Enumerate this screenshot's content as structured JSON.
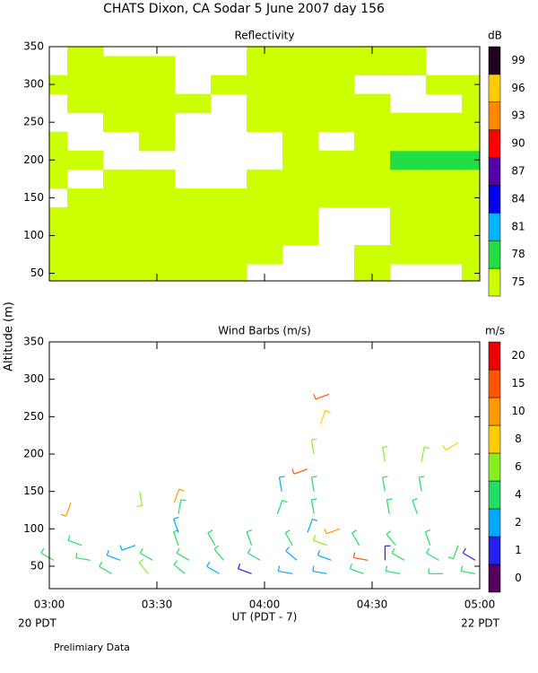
{
  "title": "CHATS Dixon, CA  Sodar    5 June 2007   day 156",
  "y_label": "Altitude (m)",
  "x_label": "UT  (PDT - 7)",
  "x_start_label": "20 PDT",
  "x_end_label": "22 PDT",
  "footnote": "Prelimiary Data",
  "chart_data": [
    {
      "type": "contour",
      "title": "Reflectivity",
      "colorbar_label": "dB",
      "xlim": [
        3,
        5
      ],
      "xticks": [
        3,
        3.5,
        4,
        4.5,
        5
      ],
      "ylim": [
        40,
        350
      ],
      "yticks": [
        50,
        100,
        150,
        200,
        250,
        300,
        350
      ],
      "x": [
        3.0,
        3.1667,
        3.3333,
        3.5,
        3.6667,
        3.8333,
        4.0,
        4.1667,
        4.3333,
        4.5,
        4.6667,
        4.8333,
        5.0
      ],
      "y": [
        50,
        75,
        100,
        125,
        150,
        175,
        200,
        225,
        250,
        275,
        300,
        325,
        350
      ],
      "z": [
        [
          76,
          75,
          75,
          75,
          75,
          75,
          null,
          null,
          null,
          75,
          null,
          null,
          75
        ],
        [
          75,
          75,
          75,
          75,
          75,
          75,
          75,
          null,
          null,
          75,
          75,
          75,
          75
        ],
        [
          75,
          75,
          75,
          75,
          76,
          76,
          75,
          75,
          null,
          null,
          75,
          75,
          75
        ],
        [
          75,
          75,
          76,
          77,
          75,
          75,
          75,
          75,
          null,
          null,
          75,
          75,
          75
        ],
        [
          null,
          75,
          77,
          76,
          75,
          75,
          76,
          75,
          75,
          75,
          77,
          75,
          75
        ],
        [
          75,
          null,
          75,
          75,
          null,
          null,
          75,
          75,
          75,
          75,
          76,
          76,
          75
        ],
        [
          75,
          75,
          null,
          null,
          null,
          null,
          null,
          75,
          76,
          77,
          80,
          80,
          80
        ],
        [
          75,
          null,
          null,
          75,
          null,
          null,
          null,
          75,
          null,
          76,
          76,
          77,
          77
        ],
        [
          null,
          null,
          75,
          76,
          null,
          null,
          75,
          77,
          75,
          75,
          75,
          75,
          75
        ],
        [
          null,
          75,
          75,
          75,
          75,
          null,
          75,
          75,
          75,
          75,
          null,
          null,
          75
        ],
        [
          75,
          77,
          77,
          76,
          null,
          75,
          75,
          75,
          75,
          null,
          null,
          75,
          75
        ],
        [
          null,
          75,
          76,
          75,
          null,
          null,
          75,
          76,
          75,
          75,
          75,
          null,
          null
        ],
        [
          null,
          76,
          null,
          null,
          null,
          null,
          77,
          77,
          76,
          75,
          75,
          null,
          null
        ]
      ],
      "levels": [
        75,
        78,
        81,
        84,
        87,
        90,
        93,
        96,
        99
      ],
      "colors": [
        "#ccff00",
        "#22dd44",
        "#00b4ff",
        "#0000ee",
        "#5500aa",
        "#ff0000",
        "#ff8800",
        "#ffcc00",
        "#220022"
      ]
    },
    {
      "type": "barbs",
      "title": "Wind Barbs (m/s)",
      "colorbar_label": "m/s",
      "xlim": [
        3,
        5
      ],
      "xticks": [
        {
          "value": 3,
          "label": "03:00"
        },
        {
          "value": 3.5,
          "label": "03:30"
        },
        {
          "value": 4,
          "label": "04:00"
        },
        {
          "value": 4.5,
          "label": "04:30"
        },
        {
          "value": 5,
          "label": "05:00"
        }
      ],
      "ylim": [
        20,
        350
      ],
      "yticks": [
        50,
        100,
        150,
        200,
        250,
        300,
        350
      ],
      "x": [
        3.29,
        3.46,
        3.63,
        3.79,
        3.94,
        4.13,
        4.29,
        4.46,
        4.63,
        4.83,
        4.98,
        3.02,
        3.19,
        3.33,
        3.48,
        3.65,
        3.81,
        3.98,
        4.15,
        4.31,
        4.48,
        4.56,
        4.65,
        4.81,
        4.98,
        3.15,
        3.4,
        3.6,
        3.77,
        3.94,
        4.13,
        4.29,
        4.44,
        4.61,
        4.77,
        4.9,
        3.6,
        4.2,
        4.35,
        3.6,
        4.06,
        4.23,
        4.58,
        4.71,
        3.1,
        3.58,
        3.42,
        4.08,
        4.23,
        4.56,
        4.73,
        4.2,
        4.23,
        4.56,
        4.73,
        4.9,
        4.26,
        4.3
      ],
      "altitude": [
        40,
        40,
        40,
        40,
        40,
        40,
        40,
        40,
        40,
        40,
        40,
        58,
        58,
        58,
        58,
        58,
        58,
        58,
        58,
        58,
        58,
        58,
        58,
        58,
        58,
        78,
        78,
        78,
        78,
        78,
        78,
        78,
        78,
        78,
        78,
        78,
        95,
        95,
        100,
        120,
        120,
        120,
        120,
        120,
        135,
        135,
        150,
        150,
        150,
        150,
        150,
        180,
        200,
        190,
        190,
        215,
        240,
        280
      ],
      "speed": [
        5,
        6,
        5,
        3,
        1,
        3,
        3,
        4,
        5,
        5,
        5,
        4,
        5,
        3,
        4,
        4,
        5,
        5,
        3,
        3,
        18,
        1,
        5,
        4,
        1,
        4,
        2,
        5,
        4,
        5,
        4,
        7,
        4,
        4,
        5,
        5,
        2,
        2,
        10,
        5,
        5,
        5,
        5,
        5,
        10,
        10,
        6,
        2,
        5,
        4,
        5,
        16,
        7,
        7,
        7,
        8,
        8,
        18
      ],
      "direction": [
        300,
        320,
        310,
        300,
        290,
        280,
        280,
        290,
        280,
        270,
        280,
        300,
        280,
        290,
        300,
        300,
        320,
        300,
        310,
        290,
        280,
        0,
        300,
        300,
        300,
        290,
        250,
        340,
        330,
        340,
        330,
        290,
        330,
        320,
        340,
        200,
        340,
        20,
        250,
        10,
        20,
        350,
        350,
        340,
        200,
        20,
        170,
        350,
        350,
        350,
        350,
        250,
        350,
        350,
        10,
        240,
        20,
        250
      ],
      "levels": [
        0,
        1,
        2,
        4,
        6,
        8,
        10,
        15,
        20
      ],
      "colors": [
        "#55005f",
        "#2222ee",
        "#00aaff",
        "#22dd66",
        "#88ee22",
        "#ffcc00",
        "#ff9900",
        "#ff5500",
        "#ee0000"
      ]
    }
  ]
}
